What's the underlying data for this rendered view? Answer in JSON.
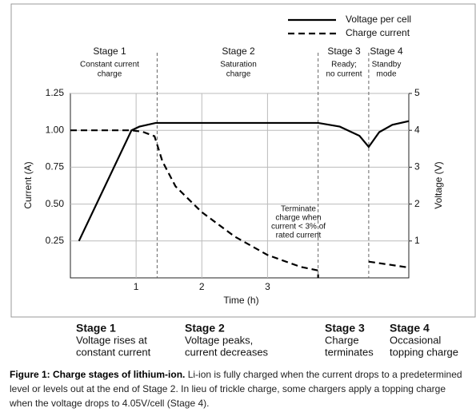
{
  "chart_data": {
    "type": "line",
    "xlabel": "Time (h)",
    "ylabel": "Current (A)",
    "y2label": "Voltage (V)",
    "xlim": [
      0,
      5.15
    ],
    "xticks": [
      1,
      2,
      3
    ],
    "ylim": [
      0,
      1.25
    ],
    "yticks": [
      {
        "value": 0.25,
        "label": "0.25"
      },
      {
        "value": 0.5,
        "label": "0.50"
      },
      {
        "value": 0.75,
        "label": "0.75"
      },
      {
        "value": 1,
        "label": "1.00"
      },
      {
        "value": 1.25,
        "label": "1.25"
      }
    ],
    "y2lim": [
      0,
      5
    ],
    "y2ticks": [
      1,
      2,
      3,
      4,
      5
    ],
    "grid": true,
    "legend": "top-right",
    "series": [
      {
        "name": "Voltage per cell",
        "color": "#000000",
        "style": "solid",
        "axis": "y2",
        "x": [
          0.13,
          0.93,
          1.05,
          1.3,
          2,
          3,
          3.77,
          4.1,
          4.4,
          4.54,
          4.7,
          4.9,
          5.15
        ],
        "values": [
          1.0,
          4.0,
          4.1,
          4.2,
          4.2,
          4.2,
          4.2,
          4.1,
          3.85,
          3.55,
          3.95,
          4.15,
          4.25
        ]
      },
      {
        "name": "Charge current",
        "color": "#000000",
        "style": "dashed",
        "x": [
          0,
          0.93,
          1.1,
          1.28,
          1.4,
          1.6,
          2,
          2.5,
          3,
          3.5,
          3.77,
          3.77,
          null,
          4.54,
          5.15
        ],
        "values": [
          1.0,
          1.0,
          0.99,
          0.96,
          0.79,
          0.62,
          0.445,
          0.28,
          0.155,
          0.075,
          0.05,
          0,
          null,
          0.11,
          0.07
        ]
      }
    ],
    "stage_boundaries": [
      1.32,
      3.77,
      4.54
    ],
    "stages": [
      {
        "name": "Stage 1",
        "lines": [
          "Constant current",
          "charge"
        ]
      },
      {
        "name": "Stage 2",
        "lines": [
          "Saturation",
          "charge"
        ]
      },
      {
        "name": "Stage 3",
        "lines": [
          "Ready;",
          "no current"
        ]
      },
      {
        "name": "Stage 4",
        "lines": [
          "Standby",
          "mode"
        ]
      }
    ],
    "annotation": [
      "Terminate",
      "charge when",
      "current < 3% of",
      "rated current"
    ]
  },
  "summary": [
    {
      "name": "Stage 1",
      "lines": [
        "Voltage rises at",
        "constant current"
      ]
    },
    {
      "name": "Stage 2",
      "lines": [
        "Voltage peaks,",
        "current decreases"
      ]
    },
    {
      "name": "Stage 3",
      "lines": [
        "Charge",
        "terminates"
      ]
    },
    {
      "name": "Stage 4",
      "lines": [
        "Occasional",
        "topping charge"
      ]
    }
  ],
  "caption": {
    "label": "Figure 1: Charge stages of lithium-ion.",
    "text": "Li-ion is fully charged when the current drops to a predetermined level or levels out at the end of Stage 2. In lieu of trickle charge, some chargers apply a topping charge when the voltage drops to 4.05V/cell (Stage 4)."
  }
}
